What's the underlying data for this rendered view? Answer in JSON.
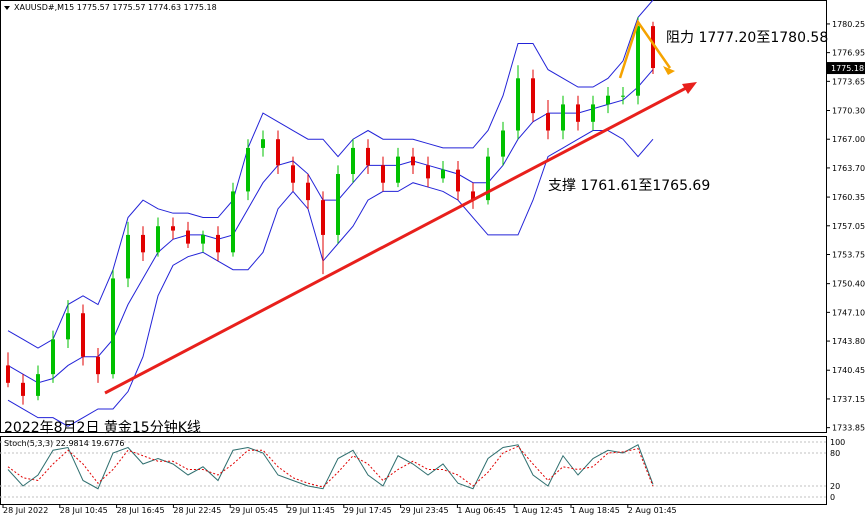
{
  "chart_data": {
    "type": "candlestick",
    "title": "XAUUSD#,M15  1775.57 1775.57 1774.63 1775.18",
    "annotations": [
      "阻力 1777.20至1780.58",
      "支撑 1761.61至1765.69",
      "2022年8月2日 黄金15分钟K线"
    ],
    "current_price": 1775.18,
    "ylim": [
      1733.35,
      1783.0
    ],
    "yticks": [
      {
        "value": 1733.85,
        "label": "1733.85"
      },
      1737.15,
      1740.45,
      {
        "value": 1743.8,
        "label": "1743.80"
      },
      {
        "value": 1747.1,
        "label": "1747.10"
      },
      {
        "value": 1750.4,
        "label": "1750.40"
      },
      1753.75,
      1757.05,
      1760.35,
      {
        "value": 1763.7,
        "label": "1763.70"
      },
      {
        "value": 1767.0,
        "label": "1767.00"
      },
      {
        "value": 1770.3,
        "label": "1770.30"
      },
      1773.65,
      1776.95,
      1780.25
    ],
    "x_labels": [
      "28 Jul 2022",
      "28 Jul 10:45",
      "28 Jul 16:45",
      "28 Jul 22:45",
      "29 Jul 05:45",
      "29 Jul 11:45",
      "29 Jul 17:45",
      "29 Jul 23:45",
      "1 Aug 06:45",
      "1 Aug 12:45",
      "1 Aug 18:45",
      "2 Aug 01:45"
    ],
    "colors": {
      "up": "#00c000",
      "down": "#e00000",
      "bands": "#2323d8"
    },
    "open": [
      1741,
      1739,
      1737.5,
      1740,
      1744,
      1747,
      1742,
      1740,
      1751,
      1756,
      1754,
      1757,
      1756.5,
      1755,
      1756,
      1754,
      1761,
      1766,
      1767,
      1764,
      1762,
      1760,
      1756,
      1763,
      1766,
      1764,
      1762,
      1765,
      1764,
      1762.5,
      1763.5,
      1761,
      1760,
      1765,
      1768,
      1774,
      1770,
      1768,
      1771,
      1769,
      1771,
      1772,
      1772,
      1780
    ],
    "high": [
      1742.5,
      1740,
      1741,
      1745,
      1748.5,
      1748,
      1743,
      1752,
      1757.5,
      1757,
      1758,
      1758,
      1757.5,
      1756.5,
      1757,
      1762,
      1767,
      1768,
      1768,
      1765,
      1763,
      1761,
      1764,
      1767,
      1767,
      1765,
      1766,
      1766,
      1765,
      1764.5,
      1764.5,
      1762,
      1766,
      1769,
      1775.5,
      1775,
      1771.5,
      1772,
      1772,
      1772,
      1773,
      1773,
      1781,
      1780.5
    ],
    "low": [
      1738.5,
      1736.5,
      1737,
      1739,
      1743,
      1741,
      1739,
      1739.5,
      1750,
      1753,
      1753.5,
      1755.5,
      1754.5,
      1754,
      1753,
      1753.5,
      1760,
      1765,
      1763,
      1761,
      1759,
      1751.5,
      1755,
      1762,
      1763,
      1761,
      1761.5,
      1763,
      1761.5,
      1762,
      1760,
      1759,
      1759.5,
      1764,
      1767,
      1769,
      1767,
      1767,
      1768,
      1768,
      1770,
      1771,
      1771,
      1774.5
    ],
    "close": [
      1739,
      1737.5,
      1740,
      1744,
      1747,
      1742,
      1740,
      1751,
      1756,
      1754,
      1757,
      1756.5,
      1755,
      1756,
      1754,
      1761,
      1766,
      1767,
      1764,
      1762,
      1760,
      1756,
      1763,
      1766,
      1764,
      1762,
      1765,
      1764,
      1762.5,
      1763.5,
      1761,
      1760,
      1765,
      1768,
      1774,
      1770,
      1768,
      1771,
      1769,
      1771,
      1772,
      1772,
      1780,
      1775.18
    ],
    "bands": {
      "upper": [
        1745,
        1744,
        1743,
        1744,
        1748,
        1749,
        1748,
        1752,
        1758,
        1760,
        1759,
        1758.5,
        1758.5,
        1758,
        1758,
        1760,
        1766,
        1770,
        1769,
        1768,
        1767,
        1767,
        1765,
        1767,
        1768,
        1767,
        1767,
        1767,
        1766.5,
        1766,
        1766,
        1766,
        1768,
        1772,
        1778,
        1778,
        1775,
        1774,
        1773,
        1773,
        1774,
        1776,
        1781,
        1783
      ],
      "middle": [
        1741,
        1740,
        1739,
        1739.5,
        1741,
        1742,
        1742,
        1744,
        1748,
        1751,
        1754,
        1755.5,
        1756,
        1756,
        1755.5,
        1756,
        1759,
        1762,
        1764,
        1764.5,
        1763,
        1760,
        1760,
        1762,
        1764,
        1764,
        1764,
        1764.5,
        1764,
        1763.5,
        1763,
        1762,
        1762,
        1764,
        1767,
        1769,
        1770,
        1770,
        1770,
        1770.5,
        1771,
        1771.5,
        1773,
        1775
      ],
      "lower": [
        1737,
        1736,
        1735,
        1735,
        1734,
        1735,
        1736,
        1736,
        1738,
        1742,
        1749,
        1752.5,
        1753.5,
        1754,
        1753,
        1752,
        1752,
        1754,
        1759,
        1761,
        1759,
        1753,
        1755,
        1757,
        1760,
        1761,
        1761,
        1762,
        1761.5,
        1761,
        1760,
        1758,
        1756,
        1756,
        1756,
        1760,
        1765,
        1766,
        1767,
        1768,
        1768,
        1767,
        1765,
        1767
      ]
    },
    "stoch": {
      "label": "Stoch(5,3,3) 22.9814 19.6776",
      "ylim": [
        0,
        100
      ],
      "yticks": [
        0,
        20,
        80,
        100
      ],
      "main": [
        50,
        20,
        40,
        85,
        90,
        30,
        15,
        80,
        90,
        60,
        70,
        60,
        40,
        55,
        30,
        85,
        90,
        80,
        40,
        30,
        20,
        15,
        70,
        85,
        40,
        20,
        75,
        60,
        40,
        60,
        25,
        15,
        70,
        90,
        95,
        40,
        20,
        75,
        40,
        70,
        85,
        80,
        95,
        22.9814
      ],
      "signal": [
        55,
        35,
        30,
        60,
        85,
        60,
        25,
        50,
        85,
        75,
        65,
        65,
        50,
        50,
        40,
        60,
        85,
        85,
        55,
        35,
        25,
        18,
        45,
        75,
        60,
        30,
        50,
        65,
        50,
        50,
        40,
        20,
        45,
        80,
        92,
        60,
        30,
        55,
        50,
        55,
        80,
        82,
        88,
        19.6776
      ]
    }
  }
}
